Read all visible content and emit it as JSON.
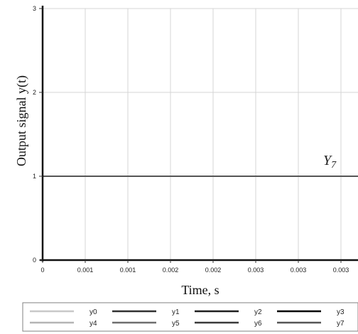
{
  "chart_data": {
    "type": "line",
    "title": "",
    "xlabel": "Time, s",
    "ylabel": "Output signal y(t)",
    "xlim": [
      0,
      0.0037
    ],
    "ylim": [
      0,
      3
    ],
    "x_tick_values": [
      0,
      0.0005,
      0.001,
      0.0015,
      0.002,
      0.0025,
      0.003,
      0.0035
    ],
    "x_tick_labels": [
      "0",
      "0.001",
      "0.001",
      "0.002",
      "0.002",
      "0.003",
      "0.003",
      "0.003"
    ],
    "y_tick_values": [
      0,
      1,
      2,
      3
    ],
    "y_tick_labels": [
      "0",
      "1",
      "2",
      "3"
    ],
    "grid": true,
    "legend_position": "bottom",
    "annotations": [
      {
        "text": "Y",
        "subscript": "7",
        "x": 0.0032,
        "y": 1
      }
    ],
    "series": [
      {
        "name": "y0",
        "color": "#c8c8c8",
        "x": [
          0,
          0.0037
        ],
        "y": [
          0,
          0
        ]
      },
      {
        "name": "y1",
        "color": "#303030",
        "x": [
          0,
          0.0037
        ],
        "y": [
          0,
          0
        ]
      },
      {
        "name": "y2",
        "color": "#1e1e1e",
        "x": [
          0,
          0.0037
        ],
        "y": [
          0,
          0
        ]
      },
      {
        "name": "y3",
        "color": "#000000",
        "x": [
          0,
          0.0037
        ],
        "y": [
          0,
          0
        ]
      },
      {
        "name": "y4",
        "color": "#b4b4b4",
        "x": [
          0,
          0.0037
        ],
        "y": [
          0,
          0
        ]
      },
      {
        "name": "y5",
        "color": "#6e6e6e",
        "x": [
          0,
          0.0037
        ],
        "y": [
          0,
          0
        ]
      },
      {
        "name": "y6",
        "color": "#3a3a3a",
        "x": [
          0,
          0.0037
        ],
        "y": [
          0,
          0
        ]
      },
      {
        "name": "y7",
        "color": "#555555",
        "x": [
          0,
          0.0037
        ],
        "y": [
          1,
          1
        ]
      }
    ]
  }
}
